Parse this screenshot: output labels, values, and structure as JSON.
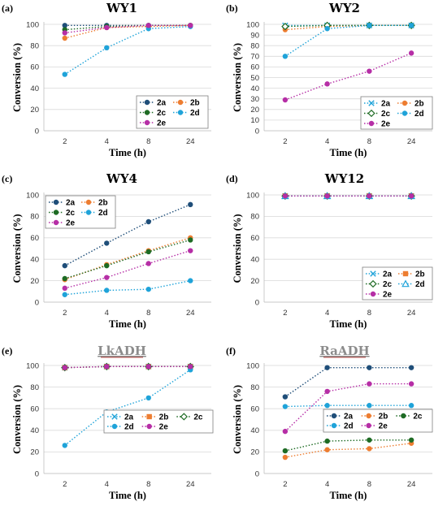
{
  "chart_data": [
    {
      "type": "line",
      "panel_label": "(a)",
      "title": "WY1",
      "title_style": "normal",
      "xlabel": "Time (h)",
      "ylabel": "Conversion  (%)",
      "categories": [
        "2",
        "4",
        "8",
        "24"
      ],
      "ylim": [
        0,
        100
      ],
      "yticks": [
        0,
        20,
        40,
        60,
        80,
        100
      ],
      "grid": true,
      "legend_position": "bottom-right",
      "legend_columns": 2,
      "series": [
        {
          "name": "2a",
          "marker": "circle",
          "color": "#1f4e79",
          "values": [
            99,
            99,
            99,
            99
          ]
        },
        {
          "name": "2b",
          "marker": "circle",
          "color": "#ed7d31",
          "values": [
            87,
            97,
            98,
            99
          ]
        },
        {
          "name": "2c",
          "marker": "circle",
          "color": "#1e6b24",
          "values": [
            95,
            98,
            99,
            99
          ]
        },
        {
          "name": "2d",
          "marker": "circle",
          "color": "#1fa3d9",
          "values": [
            53,
            78,
            96,
            98
          ]
        },
        {
          "name": "2e",
          "marker": "circle",
          "color": "#b62ea6",
          "values": [
            92,
            97,
            99,
            99
          ]
        }
      ]
    },
    {
      "type": "line",
      "panel_label": "(b)",
      "title": "WY2",
      "title_style": "normal",
      "xlabel": "Time (h)",
      "ylabel": "Conversion (%)",
      "categories": [
        "2",
        "4",
        "8",
        "24"
      ],
      "ylim": [
        0,
        100
      ],
      "yticks": [
        0,
        10,
        20,
        30,
        40,
        50,
        60,
        70,
        80,
        90,
        100
      ],
      "grid": true,
      "legend_position": "bottom-right",
      "legend_columns": 2,
      "series": [
        {
          "name": "2a",
          "marker": "x",
          "color": "#1fa3d9",
          "values": [
            99,
            99,
            99,
            99
          ]
        },
        {
          "name": "2b",
          "marker": "circle",
          "color": "#ed7d31",
          "values": [
            95,
            98,
            99,
            99
          ]
        },
        {
          "name": "2c",
          "marker": "diamond-open",
          "color": "#1e6b24",
          "values": [
            98,
            99,
            99,
            99
          ]
        },
        {
          "name": "2d",
          "marker": "circle",
          "color": "#1fa3d9",
          "values": [
            70,
            96,
            99,
            99
          ]
        },
        {
          "name": "2e",
          "marker": "circle",
          "color": "#b62ea6",
          "values": [
            29,
            44,
            56,
            73
          ]
        }
      ]
    },
    {
      "type": "line",
      "panel_label": "(c)",
      "title": "WY4",
      "title_style": "normal",
      "xlabel": "Time (h)",
      "ylabel": "Conversion (%)",
      "categories": [
        "2",
        "4",
        "8",
        "24"
      ],
      "ylim": [
        0,
        100
      ],
      "yticks": [
        0,
        20,
        40,
        60,
        80,
        100
      ],
      "grid": true,
      "legend_position": "top-left",
      "legend_columns": 2,
      "series": [
        {
          "name": "2a",
          "marker": "circle",
          "color": "#1f4e79",
          "values": [
            34,
            55,
            75,
            91
          ]
        },
        {
          "name": "2b",
          "marker": "circle",
          "color": "#ed7d31",
          "values": [
            21,
            35,
            48,
            60
          ]
        },
        {
          "name": "2c",
          "marker": "circle",
          "color": "#1e6b24",
          "values": [
            22,
            34,
            47,
            58
          ]
        },
        {
          "name": "2d",
          "marker": "circle",
          "color": "#1fa3d9",
          "values": [
            7,
            11,
            12,
            20
          ]
        },
        {
          "name": "2e",
          "marker": "circle",
          "color": "#b62ea6",
          "values": [
            13,
            23,
            36,
            48
          ]
        }
      ]
    },
    {
      "type": "line",
      "panel_label": "(d)",
      "title": "WY12",
      "title_style": "normal",
      "xlabel": "Time (h)",
      "ylabel": "Conversion (%)",
      "categories": [
        "2",
        "4",
        "8",
        "24"
      ],
      "ylim": [
        0,
        100
      ],
      "yticks": [
        0,
        20,
        40,
        60,
        80,
        100
      ],
      "grid": true,
      "legend_position": "bottom-right",
      "legend_columns": 2,
      "series": [
        {
          "name": "2a",
          "marker": "x",
          "color": "#1fa3d9",
          "values": [
            99,
            99,
            99,
            99
          ]
        },
        {
          "name": "2b",
          "marker": "square",
          "color": "#ed7d31",
          "values": [
            99,
            99,
            99,
            99
          ]
        },
        {
          "name": "2c",
          "marker": "diamond-open",
          "color": "#1e6b24",
          "values": [
            99,
            99,
            99,
            99
          ]
        },
        {
          "name": "2d",
          "marker": "triangle-open",
          "color": "#1fa3d9",
          "values": [
            99,
            99,
            99,
            99
          ]
        },
        {
          "name": "2e",
          "marker": "circle",
          "color": "#b62ea6",
          "values": [
            99,
            99,
            99,
            99
          ]
        }
      ]
    },
    {
      "type": "line",
      "panel_label": "(e)",
      "title": "LkADH",
      "title_style": "underlined",
      "xlabel": "Time (h)",
      "ylabel": "Conversion (%)",
      "categories": [
        "2",
        "4",
        "8",
        "24"
      ],
      "ylim": [
        0,
        100
      ],
      "yticks": [
        0,
        20,
        40,
        60,
        80,
        100
      ],
      "grid": true,
      "legend_position": "middle-right",
      "legend_columns": 3,
      "series": [
        {
          "name": "2a",
          "marker": "x",
          "color": "#1fa3d9",
          "values": [
            98,
            99,
            99,
            99
          ]
        },
        {
          "name": "2b",
          "marker": "square",
          "color": "#ed7d31",
          "values": [
            98,
            99,
            99,
            99
          ]
        },
        {
          "name": "2c",
          "marker": "diamond-open",
          "color": "#1e6b24",
          "values": [
            98,
            99,
            99,
            99
          ]
        },
        {
          "name": "2d",
          "marker": "circle",
          "color": "#1fa3d9",
          "values": [
            26,
            57,
            70,
            96
          ]
        },
        {
          "name": "2e",
          "marker": "circle",
          "color": "#b62ea6",
          "values": [
            98,
            99,
            99,
            99
          ]
        }
      ]
    },
    {
      "type": "line",
      "panel_label": "(f)",
      "title": "RaADH",
      "title_style": "underlined",
      "xlabel": "Time (h)",
      "ylabel": "Conversion (%)",
      "categories": [
        "2",
        "4",
        "8",
        "24"
      ],
      "ylim": [
        0,
        100
      ],
      "yticks": [
        0,
        20,
        40,
        60,
        80,
        100
      ],
      "grid": true,
      "legend_position": "middle-right",
      "legend_columns": 3,
      "series": [
        {
          "name": "2a",
          "marker": "circle",
          "color": "#1f4e79",
          "values": [
            71,
            98,
            98,
            98
          ]
        },
        {
          "name": "2b",
          "marker": "circle",
          "color": "#ed7d31",
          "values": [
            15,
            22,
            23,
            28
          ]
        },
        {
          "name": "2c",
          "marker": "circle",
          "color": "#1e6b24",
          "values": [
            21,
            30,
            31,
            31
          ]
        },
        {
          "name": "2d",
          "marker": "circle",
          "color": "#1fa3d9",
          "values": [
            62,
            63,
            63,
            63
          ]
        },
        {
          "name": "2e",
          "marker": "circle",
          "color": "#b62ea6",
          "values": [
            39,
            76,
            83,
            83
          ]
        }
      ]
    }
  ]
}
